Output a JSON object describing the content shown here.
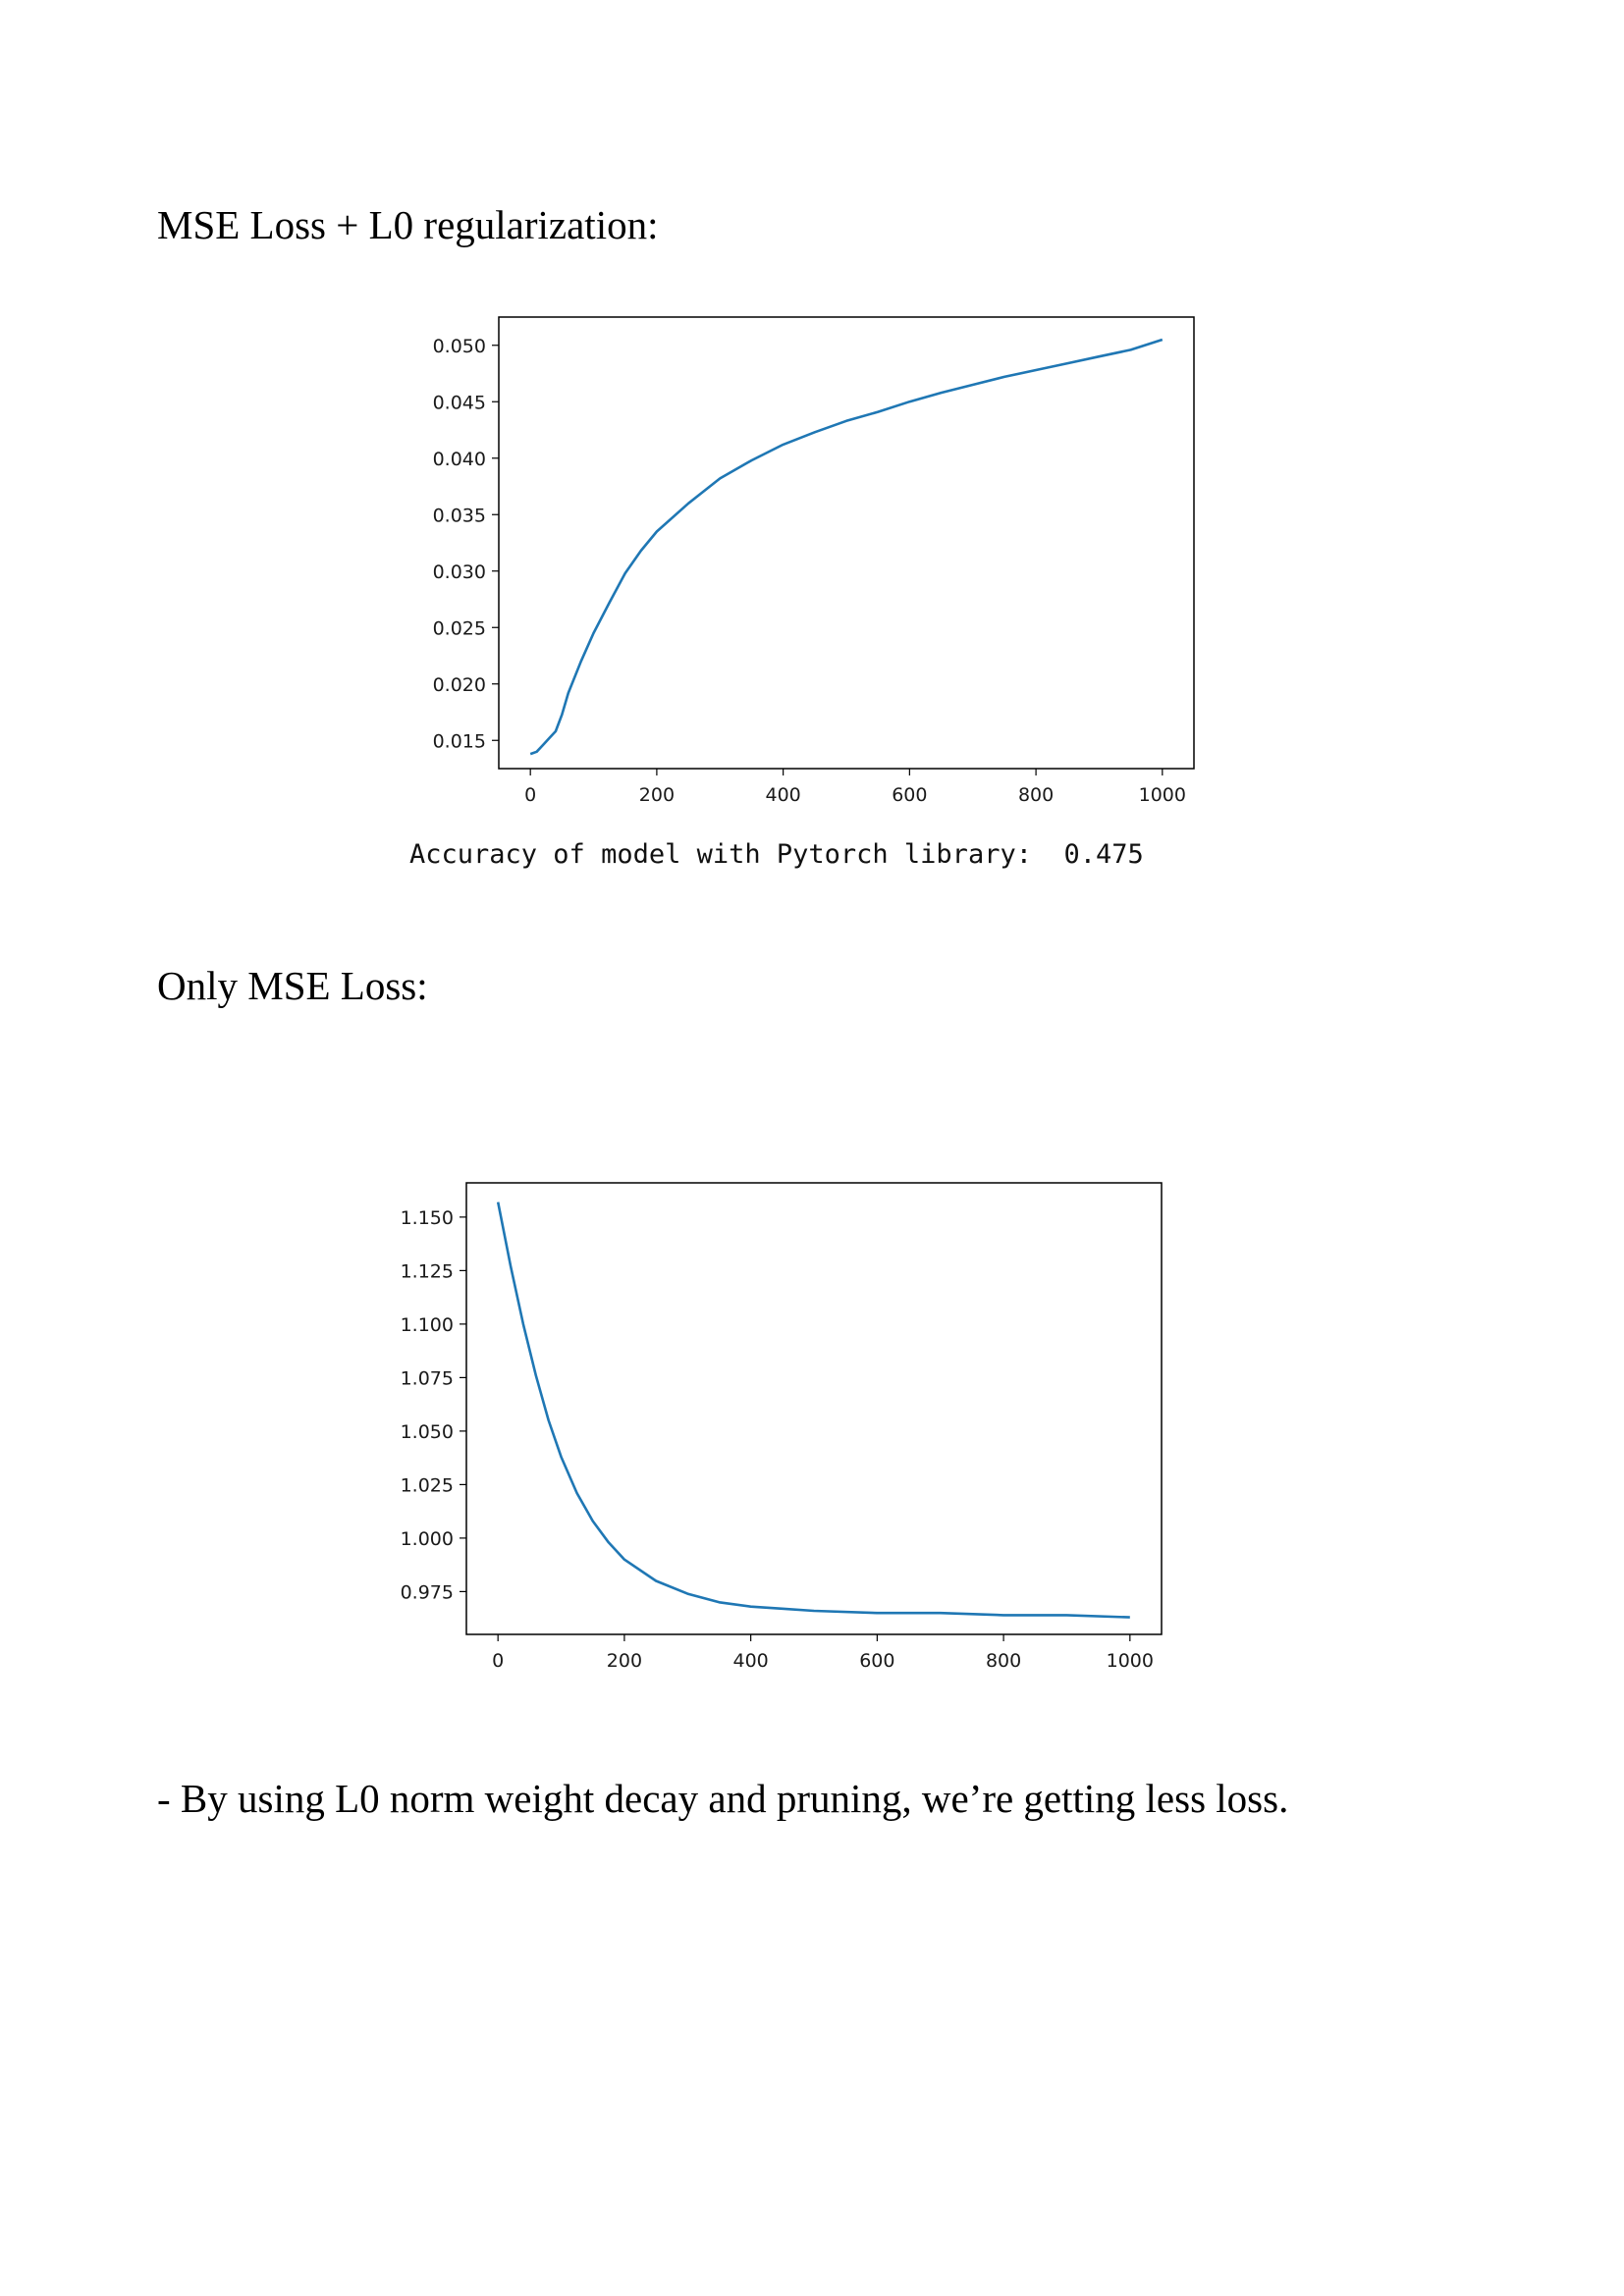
{
  "sections": {
    "first_heading": "MSE Loss + L0 regularization:",
    "accuracy_label": "Accuracy of model with Pytorch library:",
    "accuracy_value": "0.475",
    "second_heading": "Only MSE Loss:",
    "conclusion": "- By using L0 norm weight decay and pruning, we’re getting less loss."
  },
  "chart_data": [
    {
      "type": "line",
      "title": "",
      "xlabel": "",
      "ylabel": "",
      "xlim": [
        -50,
        1050
      ],
      "ylim": [
        0.0125,
        0.0525
      ],
      "xticks": [
        0,
        200,
        400,
        600,
        800,
        1000
      ],
      "yticks": [
        0.015,
        0.02,
        0.025,
        0.03,
        0.035,
        0.04,
        0.045,
        0.05
      ],
      "ytick_labels": [
        "0.015",
        "0.020",
        "0.025",
        "0.030",
        "0.035",
        "0.040",
        "0.045",
        "0.050"
      ],
      "grid": false,
      "line_color": "#1f77b4",
      "series": [
        {
          "x": [
            0,
            10,
            20,
            30,
            40,
            50,
            60,
            80,
            100,
            125,
            150,
            175,
            200,
            250,
            300,
            350,
            400,
            450,
            500,
            550,
            600,
            650,
            700,
            750,
            800,
            850,
            900,
            950,
            1000
          ],
          "y": [
            0.0138,
            0.014,
            0.0146,
            0.0152,
            0.0158,
            0.0173,
            0.0192,
            0.022,
            0.0245,
            0.0272,
            0.0298,
            0.0318,
            0.0335,
            0.036,
            0.0382,
            0.0398,
            0.0412,
            0.0423,
            0.0433,
            0.0441,
            0.045,
            0.0458,
            0.0465,
            0.0472,
            0.0478,
            0.0484,
            0.049,
            0.0496,
            0.0505
          ]
        }
      ]
    },
    {
      "type": "line",
      "title": "",
      "xlabel": "",
      "ylabel": "",
      "xlim": [
        -50,
        1050
      ],
      "ylim": [
        0.955,
        1.166
      ],
      "xticks": [
        0,
        200,
        400,
        600,
        800,
        1000
      ],
      "yticks": [
        0.975,
        1.0,
        1.025,
        1.05,
        1.075,
        1.1,
        1.125,
        1.15
      ],
      "ytick_labels": [
        "0.975",
        "1.000",
        "1.025",
        "1.050",
        "1.075",
        "1.100",
        "1.125",
        "1.150"
      ],
      "grid": false,
      "line_color": "#1f77b4",
      "series": [
        {
          "x": [
            0,
            20,
            40,
            60,
            80,
            100,
            125,
            150,
            175,
            200,
            250,
            300,
            350,
            400,
            450,
            500,
            600,
            700,
            800,
            900,
            1000
          ],
          "y": [
            1.157,
            1.127,
            1.1,
            1.076,
            1.055,
            1.038,
            1.021,
            1.008,
            0.998,
            0.99,
            0.98,
            0.974,
            0.97,
            0.968,
            0.967,
            0.966,
            0.965,
            0.965,
            0.964,
            0.964,
            0.963
          ]
        }
      ]
    }
  ]
}
